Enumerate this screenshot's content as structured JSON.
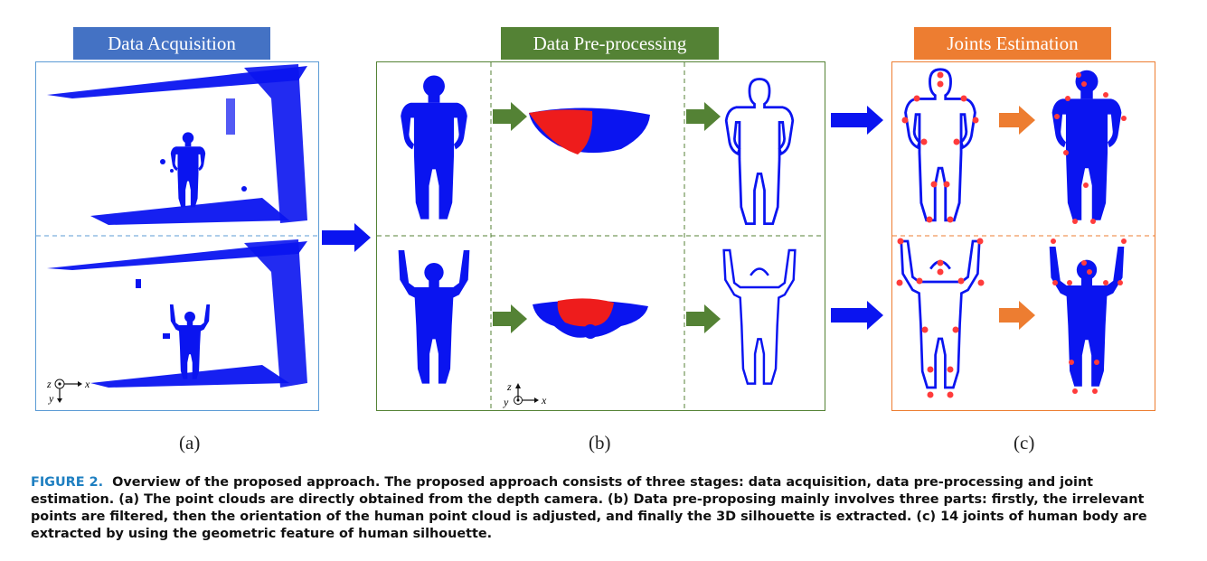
{
  "stages": {
    "acquisition": {
      "title": "Data Acquisition",
      "color": "#4472c4",
      "sublabel": "(a)"
    },
    "preprocessing": {
      "title": "Data Pre-processing",
      "color": "#548235",
      "sublabel": "(b)"
    },
    "estimation": {
      "title": "Joints Estimation",
      "color": "#ed7d31",
      "sublabel": "(c)"
    }
  },
  "axes": {
    "a": {
      "z": "z",
      "x": "x",
      "y": "y"
    },
    "b": {
      "z": "z",
      "y": "y",
      "x": "x"
    }
  },
  "colors": {
    "point_cloud": "#0a14f0",
    "joint": "#ff3b3b",
    "red_cloud": "#ee1c1c",
    "arrow_blue": "#0a14f0",
    "arrow_green": "#548235",
    "arrow_orange": "#ed7d31"
  },
  "caption": {
    "label": "FIGURE 2.",
    "text": "Overview of the proposed approach. The proposed approach consists of three stages: data acquisition, data pre-processing and joint estimation. (a) The point clouds are directly obtained from the depth camera. (b) Data pre-proposing mainly involves three parts: firstly, the irrelevant points are filtered, then the orientation of the human point cloud is adjusted, and finally the 3D silhouette is extracted. (c) 14 joints of human body are extracted by using the geometric feature of human silhouette."
  }
}
